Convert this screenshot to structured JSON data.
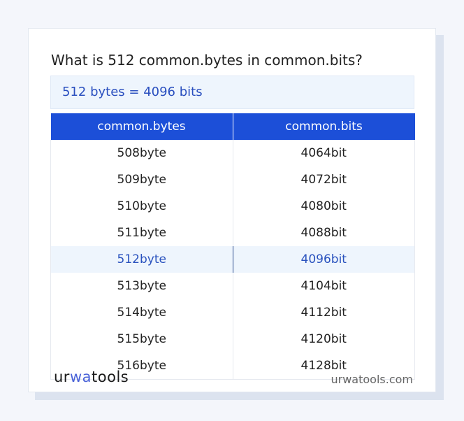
{
  "title": "What is 512 common.bytes in common.bits?",
  "result": "512 bytes = 4096 bits",
  "table": {
    "headers": [
      "common.bytes",
      "common.bits"
    ],
    "rows": [
      [
        "508byte",
        "4064bit"
      ],
      [
        "509byte",
        "4072bit"
      ],
      [
        "510byte",
        "4080bit"
      ],
      [
        "511byte",
        "4088bit"
      ],
      [
        "512byte",
        "4096bit"
      ],
      [
        "513byte",
        "4104bit"
      ],
      [
        "514byte",
        "4112bit"
      ],
      [
        "515byte",
        "4120bit"
      ],
      [
        "516byte",
        "4128bit"
      ]
    ],
    "highlighted_row": 4
  },
  "footer": {
    "logo": "urwatools",
    "logo_parts": [
      "ur",
      "wa",
      "too",
      "ls"
    ],
    "site": "urwatools.com"
  },
  "colors": {
    "accent": "#1c4fd8",
    "highlight_bg": "#eef5fd",
    "highlight_text": "#2a52be"
  }
}
